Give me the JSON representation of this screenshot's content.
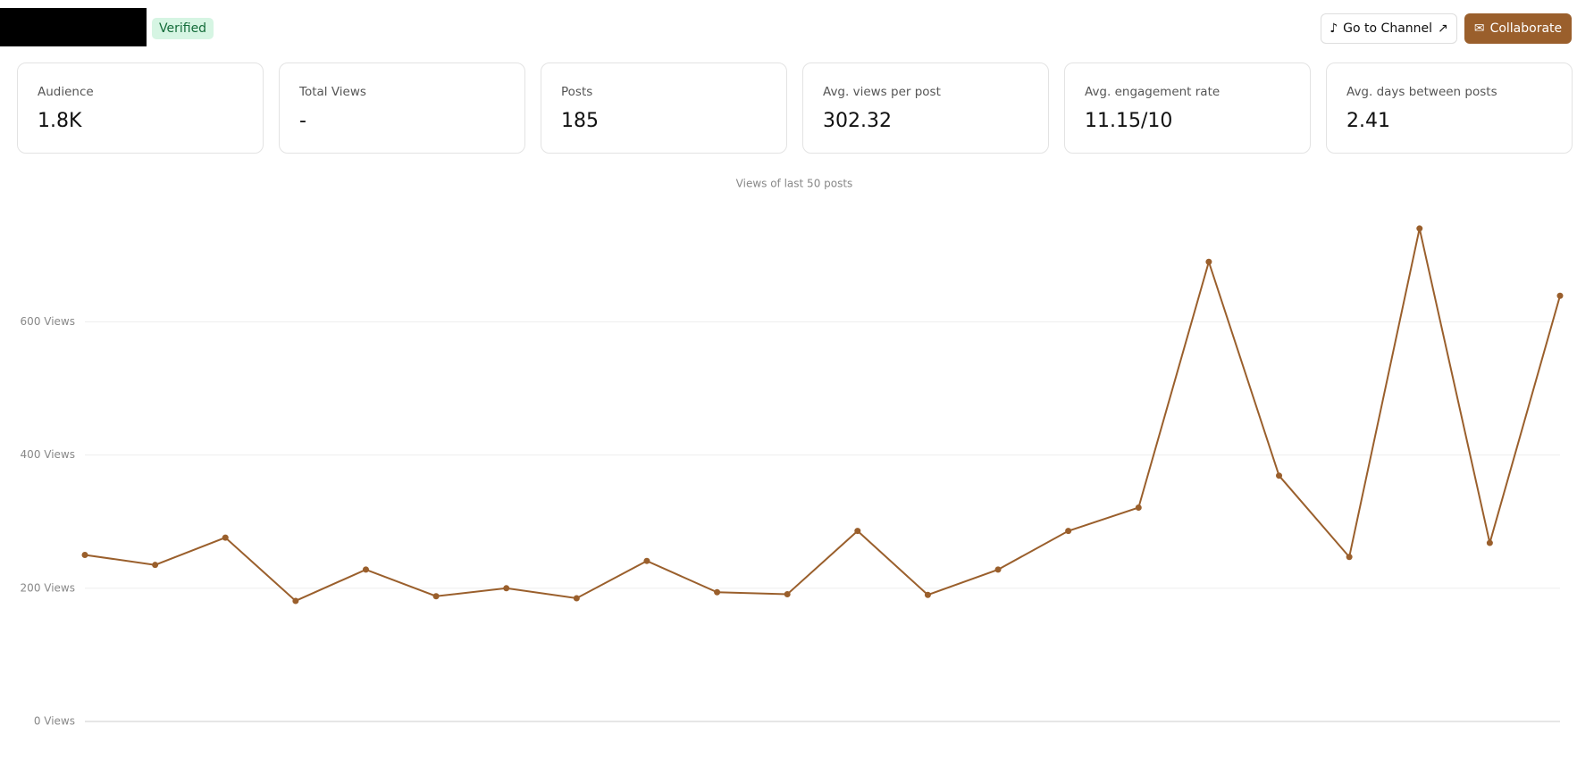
{
  "header": {
    "badge": "Verified",
    "buttons": [
      "Go to Channel",
      "Collaborate"
    ]
  },
  "stats": [
    {
      "label": "Audience",
      "value": "1.8K"
    },
    {
      "label": "Total Views",
      "value": "-"
    },
    {
      "label": "Posts",
      "value": "185"
    },
    {
      "label": "Avg. views per post",
      "value": "302.32"
    },
    {
      "label": "Avg. engagement rate",
      "value": "11.15/10"
    },
    {
      "label": "Avg. days between posts",
      "value": "2.41"
    }
  ],
  "chart_data": {
    "type": "line",
    "title": "Views of last 50 posts",
    "categories": [
      null,
      null,
      null,
      null,
      null,
      null,
      null,
      null,
      null,
      null,
      null,
      null,
      null,
      null,
      null,
      null,
      null,
      null,
      null,
      null,
      null,
      null
    ],
    "series": [
      {
        "name": "Views",
        "color": "#9a5f2c",
        "values": [
          250,
          235,
          276,
          181,
          228,
          188,
          200,
          185,
          241,
          194,
          191,
          286,
          190,
          228,
          286,
          321,
          690,
          369,
          247,
          740,
          268,
          639
        ]
      }
    ],
    "ylim": [
      0,
      760
    ],
    "yticks": [
      {
        "value": 0,
        "label": "0 Views"
      },
      {
        "value": 200,
        "label": "200 Views"
      },
      {
        "value": 400,
        "label": "400 Views"
      },
      {
        "value": 600,
        "label": "600 Views"
      }
    ],
    "grid": true
  }
}
